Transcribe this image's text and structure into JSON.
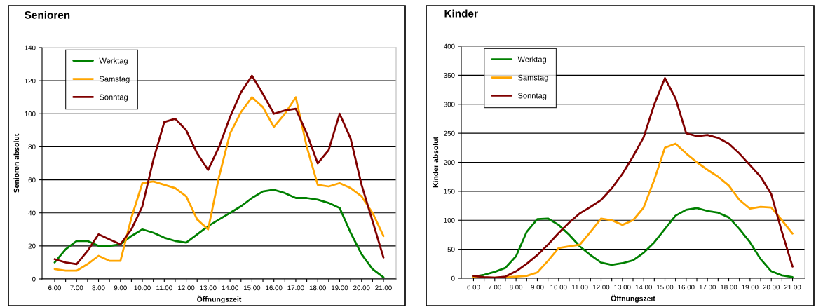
{
  "chart_data": [
    {
      "type": "line",
      "title": "Senioren",
      "xlabel": "Öffnungszeit",
      "ylabel": "Senioren absolut",
      "categories": [
        "6.00",
        null,
        "7.00",
        null,
        "8.00",
        null,
        "9.00",
        null,
        "10.00",
        null,
        "11.00",
        null,
        "12.00",
        null,
        "13.00",
        null,
        "14.00",
        null,
        "15.00",
        null,
        "16.00",
        null,
        "17.00",
        null,
        "18.00",
        null,
        "19.00",
        null,
        "20.00",
        null,
        "21.00"
      ],
      "series": [
        {
          "name": "Werktag",
          "color": "#008000",
          "values": [
            10,
            18,
            23,
            23,
            20,
            20,
            21,
            26,
            30,
            28,
            25,
            23,
            22,
            27,
            32,
            36,
            40,
            44,
            49,
            53,
            54,
            52,
            49,
            49,
            48,
            46,
            43,
            28,
            15,
            6,
            1
          ]
        },
        {
          "name": "Samstag",
          "color": "#ffa500",
          "values": [
            6,
            5,
            5,
            9,
            14,
            11,
            11,
            37,
            58,
            59,
            57,
            55,
            50,
            36,
            30,
            62,
            88,
            101,
            110,
            104,
            92,
            100,
            110,
            80,
            57,
            56,
            58,
            55,
            50,
            40,
            26
          ]
        },
        {
          "name": "Sonntag",
          "color": "#800000",
          "values": [
            12,
            10,
            9,
            17,
            27,
            24,
            21,
            30,
            44,
            72,
            95,
            97,
            90,
            76,
            66,
            80,
            98,
            113,
            123,
            112,
            100,
            102,
            103,
            88,
            70,
            78,
            100,
            85,
            57,
            35,
            13
          ]
        }
      ],
      "ylim": [
        0,
        140
      ],
      "yticks": [
        0,
        20,
        40,
        60,
        80,
        100,
        120,
        140
      ],
      "grid": "y",
      "legend": "top left"
    },
    {
      "type": "line",
      "title": "Kinder",
      "xlabel": "Öffnungszeit",
      "ylabel": "Kinder absolut",
      "categories": [
        "6.00",
        null,
        "7.00",
        null,
        "8.00",
        null,
        "9.00",
        null,
        "10.00",
        null,
        "11.00",
        null,
        "12.00",
        null,
        "13.00",
        null,
        "14.00",
        null,
        "15.00",
        null,
        "16.00",
        null,
        "17.00",
        null,
        "18.00",
        null,
        "19.00",
        null,
        "20.00",
        null,
        "21.00"
      ],
      "series": [
        {
          "name": "Werktag",
          "color": "#008000",
          "values": [
            3,
            6,
            11,
            18,
            38,
            80,
            102,
            103,
            92,
            75,
            55,
            40,
            27,
            23,
            26,
            31,
            44,
            62,
            85,
            108,
            118,
            121,
            116,
            113,
            105,
            85,
            62,
            33,
            12,
            5,
            2
          ]
        },
        {
          "name": "Samstag",
          "color": "#ffa500",
          "values": [
            2,
            1,
            1,
            2,
            3,
            4,
            10,
            30,
            52,
            55,
            58,
            80,
            103,
            100,
            92,
            100,
            122,
            170,
            225,
            232,
            215,
            200,
            187,
            175,
            160,
            135,
            120,
            123,
            122,
            100,
            77
          ]
        },
        {
          "name": "Sonntag",
          "color": "#800000",
          "values": [
            4,
            2,
            1,
            3,
            12,
            25,
            40,
            58,
            78,
            96,
            112,
            123,
            135,
            155,
            180,
            210,
            243,
            300,
            345,
            310,
            250,
            245,
            247,
            242,
            232,
            215,
            195,
            175,
            145,
            80,
            20
          ]
        }
      ],
      "ylim": [
        0,
        400
      ],
      "yticks": [
        0,
        50,
        100,
        150,
        200,
        250,
        300,
        350,
        400
      ],
      "grid": "y",
      "legend": "top left"
    }
  ]
}
